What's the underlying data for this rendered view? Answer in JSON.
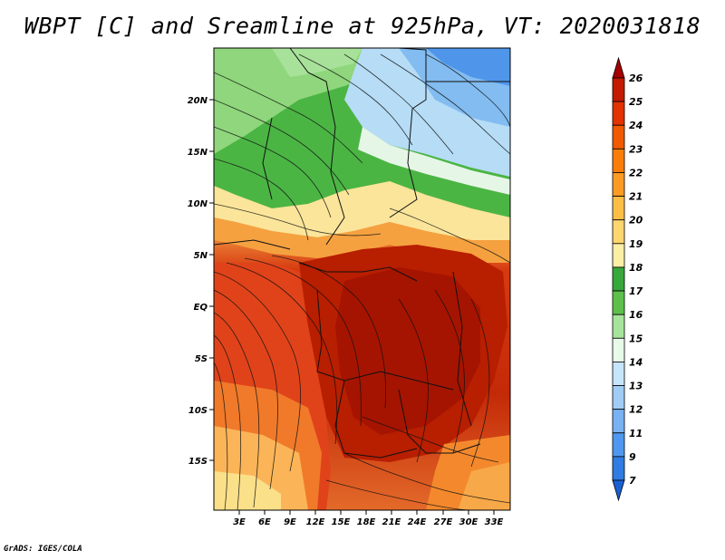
{
  "title": "WBPT [C] and Sreamline at 925hPa, VT: 2020031818",
  "credit": "GrADS: IGES/COLA",
  "map": {
    "lat_labels": [
      "20N",
      "15N",
      "10N",
      "5N",
      "EQ",
      "5S",
      "10S",
      "15S"
    ],
    "lon_labels": [
      "3E",
      "6E",
      "9E",
      "12E",
      "15E",
      "18E",
      "21E",
      "24E",
      "27E",
      "30E",
      "33E"
    ]
  },
  "colorbar": {
    "labels": [
      "26",
      "25",
      "24",
      "23",
      "22",
      "21",
      "20",
      "19",
      "18",
      "17",
      "16",
      "15",
      "14",
      "13",
      "12",
      "11",
      "9",
      "7"
    ],
    "colors": [
      "#a50000",
      "#c31a00",
      "#e23200",
      "#f05a00",
      "#fa7d0a",
      "#fb9b23",
      "#fdbe46",
      "#fdd66e",
      "#fbeea5",
      "#37a83a",
      "#5dc04b",
      "#a6e49b",
      "#e8fae8",
      "#c6e4fa",
      "#a0ccf6",
      "#78b2f3",
      "#4f98ef",
      "#2f7ce3",
      "#1a60d2"
    ]
  }
}
